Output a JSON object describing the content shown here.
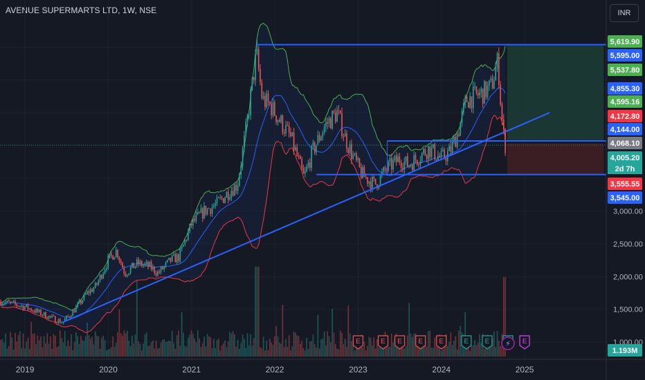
{
  "header": {
    "symbol_title": "AVENUE SUPERMARTS LTD, 1W, NSE",
    "currency": "INR"
  },
  "colors": {
    "background": "#151924",
    "bull": "#26a69a",
    "bear": "#ef5350",
    "bb_upper": "#4caf50",
    "bb_lower": "#f23645",
    "bb_basis": "#2962ff",
    "levels": "#2962ff",
    "profit_zone": "#1b3b35",
    "loss_zone": "#3d1f24"
  },
  "chart_data": {
    "type": "candlestick",
    "title": "AVENUE SUPERMARTS LTD, 1W, NSE",
    "x_ticks": [
      "2019",
      "2020",
      "2021",
      "2022",
      "2023",
      "2024",
      "2025"
    ],
    "y_ticks": [
      1000,
      1500,
      2000,
      2500,
      3000
    ],
    "y_tick_labels": [
      "1,000.00",
      "1,500.00",
      "2,000.00",
      "2,500.00",
      "3,000.00"
    ],
    "ylim": [
      780,
      5850
    ],
    "price_series": {
      "name": "weekly close",
      "points": [
        [
          2018.7,
          1620
        ],
        [
          2019.0,
          1540
        ],
        [
          2019.3,
          1380
        ],
        [
          2019.45,
          1300
        ],
        [
          2019.6,
          1500
        ],
        [
          2019.75,
          1750
        ],
        [
          2019.85,
          1850
        ],
        [
          2020.0,
          2250
        ],
        [
          2020.1,
          2400
        ],
        [
          2020.2,
          2050
        ],
        [
          2020.35,
          2200
        ],
        [
          2020.5,
          2150
        ],
        [
          2020.6,
          2050
        ],
        [
          2020.75,
          2250
        ],
        [
          2020.85,
          2300
        ],
        [
          2021.0,
          2800
        ],
        [
          2021.15,
          3000
        ],
        [
          2021.3,
          3100
        ],
        [
          2021.45,
          3300
        ],
        [
          2021.55,
          3400
        ],
        [
          2021.65,
          4200
        ],
        [
          2021.78,
          5400
        ],
        [
          2021.85,
          4700
        ],
        [
          2021.95,
          4600
        ],
        [
          2022.05,
          4400
        ],
        [
          2022.2,
          4100
        ],
        [
          2022.35,
          3500
        ],
        [
          2022.45,
          3900
        ],
        [
          2022.6,
          4300
        ],
        [
          2022.75,
          4500
        ],
        [
          2022.85,
          4100
        ],
        [
          2022.95,
          3800
        ],
        [
          2023.05,
          3550
        ],
        [
          2023.2,
          3400
        ],
        [
          2023.35,
          3650
        ],
        [
          2023.5,
          3800
        ],
        [
          2023.6,
          3700
        ],
        [
          2023.75,
          3850
        ],
        [
          2023.85,
          3950
        ],
        [
          2024.0,
          3800
        ],
        [
          2024.1,
          3900
        ],
        [
          2024.2,
          4200
        ],
        [
          2024.3,
          4700
        ],
        [
          2024.4,
          4750
        ],
        [
          2024.5,
          4800
        ],
        [
          2024.6,
          4900
        ],
        [
          2024.68,
          5300
        ],
        [
          2024.72,
          4500
        ],
        [
          2024.76,
          4005
        ]
      ]
    },
    "trendline": {
      "start": [
        2019.45,
        1300
      ],
      "end": [
        2025.3,
        4500
      ]
    },
    "horizontal_levels": [
      5537.8,
      4068.1,
      3555.55
    ],
    "price_axis_labels": [
      {
        "label": "5,619.90",
        "value": 5619.9,
        "color": "#4caf50"
      },
      {
        "label": "5,595.00",
        "value": 5595.0,
        "color": "#2962ff"
      },
      {
        "label": "5,537.80",
        "value": 5537.8,
        "color": "#4caf50"
      },
      {
        "label": "4,855.30",
        "value": 4855.3,
        "color": "#2962ff"
      },
      {
        "label": "4,595.16",
        "value": 4595.16,
        "color": "#4caf50"
      },
      {
        "label": "4,172.80",
        "value": 4172.8,
        "color": "#f23645"
      },
      {
        "label": "4,144.00",
        "value": 4144.0,
        "color": "#2962ff"
      },
      {
        "label": "4,068.10",
        "value": 4068.1,
        "color": "#787b86"
      },
      {
        "label": "4,005.20",
        "value": 4005.2,
        "color": "#26a69a"
      },
      {
        "label": "2d 7h",
        "value": 3835,
        "color": "#26a69a"
      },
      {
        "label": "3,555.55",
        "value": 3555.55,
        "color": "#f23645"
      },
      {
        "label": "3,545.00",
        "value": 3545.0,
        "color": "#2962ff"
      }
    ],
    "volume_label": "1.193M",
    "earnings_markers": [
      {
        "x": 2023.0,
        "label": "E"
      },
      {
        "x": 2023.3,
        "label": "E"
      },
      {
        "x": 2023.5,
        "label": "E"
      },
      {
        "x": 2023.75,
        "label": "E"
      },
      {
        "x": 2024.0,
        "label": "E"
      },
      {
        "x": 2024.3,
        "label": "E"
      },
      {
        "x": 2024.55,
        "label": "E"
      },
      {
        "x": 2024.8,
        "label": "E"
      },
      {
        "x": 2025.0,
        "label": "E"
      }
    ],
    "position_zone": {
      "x_start": 2024.79,
      "x_end": 2025.95,
      "entry": 4068.1,
      "target": 5537.8,
      "stop": 3555.55
    }
  }
}
